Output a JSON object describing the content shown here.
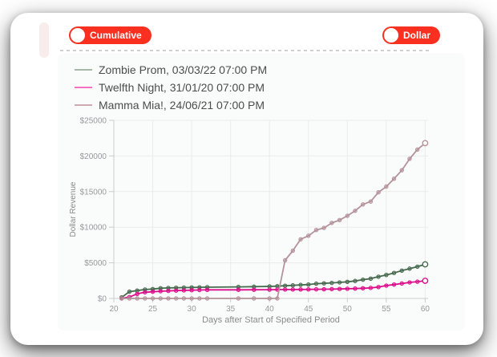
{
  "page": {
    "background_color": "#ffffff"
  },
  "toggles": {
    "cumulative_label": "Cumulative",
    "dollar_label": "Dollar",
    "accent_color": "#f93020",
    "knob_color": "#ffffff"
  },
  "chart_data": {
    "type": "line",
    "xlabel": "Days after Start of Specified Period",
    "ylabel": "Dollar Revenue",
    "xlim": [
      20,
      60
    ],
    "ylim": [
      0,
      25000
    ],
    "xticks": [
      20,
      25,
      30,
      35,
      40,
      45,
      50,
      55,
      60
    ],
    "yticks": [
      0,
      5000,
      10000,
      15000,
      20000,
      25000
    ],
    "ytick_prefix": "$",
    "grid": true,
    "legend_position": "top-left",
    "grid_color": "#ebebeb",
    "axis_color": "#cccccc",
    "tick_label_color": "#98999b",
    "axis_title_color": "#8a8a8a",
    "x": [
      21,
      22,
      23,
      24,
      25,
      26,
      27,
      28,
      29,
      30,
      31,
      32,
      36,
      38,
      40,
      41,
      42,
      43,
      44,
      45,
      46,
      47,
      48,
      49,
      50,
      51,
      52,
      53,
      54,
      55,
      56,
      57,
      58,
      59,
      60
    ],
    "series": [
      {
        "name": "Zombie Prom, 03/03/22 07:00 PM",
        "color": "#466a4e",
        "legend_swatch_color": "#a5b8aa",
        "values": [
          150,
          950,
          1100,
          1250,
          1320,
          1430,
          1470,
          1500,
          1520,
          1540,
          1560,
          1580,
          1620,
          1650,
          1690,
          1720,
          1780,
          1830,
          1900,
          1950,
          2070,
          2120,
          2180,
          2250,
          2330,
          2450,
          2630,
          2780,
          3050,
          3300,
          3580,
          3910,
          4180,
          4460,
          4790
        ]
      },
      {
        "name": "Twelfth Night, 31/01/20 07:00 PM",
        "color": "#dd0d8c",
        "legend_swatch_color": "#f771c3",
        "values": [
          0,
          190,
          640,
          865,
          940,
          1015,
          1060,
          1100,
          1130,
          1160,
          1180,
          1200,
          1210,
          1220,
          1230,
          1240,
          1250,
          1255,
          1260,
          1270,
          1280,
          1290,
          1310,
          1330,
          1360,
          1390,
          1430,
          1480,
          1600,
          1800,
          1950,
          2100,
          2250,
          2350,
          2480
        ]
      },
      {
        "name": "Mamma Mia!, 24/06/21 07:00 PM",
        "color": "#b4939a",
        "legend_swatch_color": "#cdaab2",
        "values": [
          0,
          0,
          0,
          0,
          0,
          0,
          0,
          0,
          0,
          0,
          0,
          0,
          0,
          0,
          0,
          0,
          5350,
          6700,
          8300,
          8800,
          9600,
          9900,
          10600,
          11000,
          11600,
          12300,
          13200,
          13600,
          14900,
          15700,
          16800,
          18000,
          19600,
          20900,
          21800
        ]
      }
    ]
  }
}
